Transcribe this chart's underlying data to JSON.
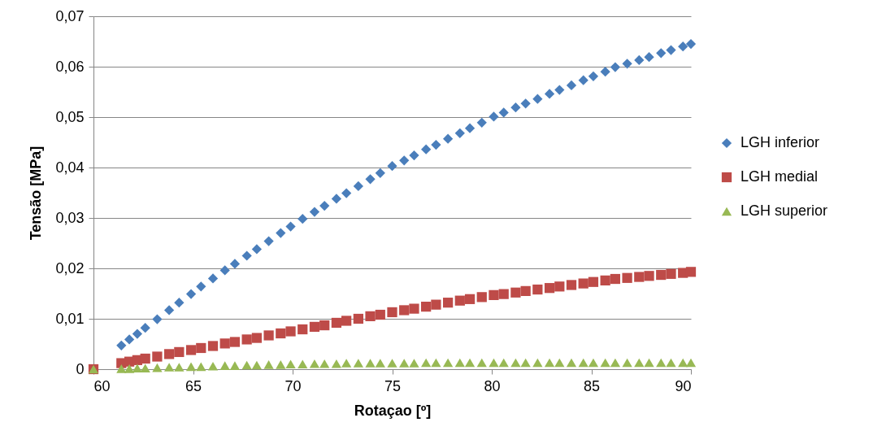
{
  "chart_data": {
    "type": "scatter",
    "xlabel": "Rotaçao [º]",
    "ylabel": "Tensão [MPa]",
    "xlim": [
      60,
      90
    ],
    "xticks": [
      60,
      65,
      70,
      75,
      80,
      85,
      90
    ],
    "ylim": [
      0,
      0.07
    ],
    "yticks": [
      0,
      {
        "value": 0.01,
        "label": "0,01"
      },
      {
        "value": 0.02,
        "label": "0,02"
      },
      {
        "value": 0.03,
        "label": "0,03"
      },
      {
        "value": 0.04,
        "label": "0,04"
      },
      {
        "value": 0.05,
        "label": "0,05"
      },
      {
        "value": 0.06,
        "label": "0,06"
      },
      {
        "value": 0.07,
        "label": "0,07"
      }
    ],
    "grid": "y",
    "legend": "right",
    "series": [
      {
        "name": "LGH inferior",
        "color": "#4a7ebb",
        "marker": "diamond",
        "x": [
          61.4,
          61.8,
          62.2,
          62.6,
          63.2,
          63.8,
          64.3,
          64.9,
          65.4,
          66.0,
          66.6,
          67.1,
          67.7,
          68.2,
          68.8,
          69.4,
          69.9,
          70.5,
          71.1,
          71.6,
          72.2,
          72.7,
          73.3,
          73.9,
          74.4,
          75.0,
          75.6,
          76.1,
          76.7,
          77.2,
          77.8,
          78.4,
          78.9,
          79.5,
          80.1,
          80.6,
          81.2,
          81.7,
          82.3,
          82.9,
          83.4,
          84.0,
          84.6,
          85.1,
          85.7,
          86.2,
          86.8,
          87.4,
          87.9,
          88.5,
          89.0,
          89.6,
          90.0
        ],
        "values": [
          0.0047,
          0.0059,
          0.007,
          0.0082,
          0.0099,
          0.0117,
          0.0132,
          0.0149,
          0.0164,
          0.018,
          0.0196,
          0.0209,
          0.0225,
          0.0238,
          0.0254,
          0.027,
          0.0283,
          0.0298,
          0.0312,
          0.0324,
          0.0338,
          0.0349,
          0.0363,
          0.0377,
          0.0389,
          0.0403,
          0.0414,
          0.0424,
          0.0436,
          0.0445,
          0.0457,
          0.0468,
          0.0478,
          0.0489,
          0.0501,
          0.0509,
          0.0519,
          0.0527,
          0.0536,
          0.0546,
          0.0554,
          0.0563,
          0.0573,
          0.0581,
          0.059,
          0.0599,
          0.0606,
          0.0613,
          0.0619,
          0.0627,
          0.0633,
          0.064,
          0.0645
        ]
      },
      {
        "name": "LGH medial",
        "color": "#be4b48",
        "marker": "square",
        "x": [
          60,
          61.4,
          61.8,
          62.2,
          62.6,
          63.2,
          63.8,
          64.3,
          64.9,
          65.4,
          66.0,
          66.6,
          67.1,
          67.7,
          68.2,
          68.8,
          69.4,
          69.9,
          70.5,
          71.1,
          71.6,
          72.2,
          72.7,
          73.3,
          73.9,
          74.4,
          75.0,
          75.6,
          76.1,
          76.7,
          77.2,
          77.8,
          78.4,
          78.9,
          79.5,
          80.1,
          80.6,
          81.2,
          81.7,
          82.3,
          82.9,
          83.4,
          84.0,
          84.6,
          85.1,
          85.7,
          86.2,
          86.8,
          87.4,
          87.9,
          88.5,
          89.0,
          89.6,
          90.0
        ],
        "values": [
          0,
          0.0012,
          0.0015,
          0.0018,
          0.0021,
          0.0025,
          0.003,
          0.0034,
          0.0038,
          0.0042,
          0.0046,
          0.0051,
          0.0054,
          0.0059,
          0.0062,
          0.0067,
          0.0071,
          0.0075,
          0.0079,
          0.0084,
          0.0087,
          0.0092,
          0.0096,
          0.01,
          0.0105,
          0.0108,
          0.0113,
          0.0117,
          0.012,
          0.0124,
          0.0128,
          0.0132,
          0.0136,
          0.0139,
          0.0143,
          0.0147,
          0.0149,
          0.0152,
          0.0155,
          0.0158,
          0.0161,
          0.0164,
          0.0167,
          0.017,
          0.0173,
          0.0176,
          0.0179,
          0.0181,
          0.0183,
          0.0185,
          0.0187,
          0.0189,
          0.0191,
          0.0193
        ]
      },
      {
        "name": "LGH superior",
        "color": "#98b954",
        "marker": "triangle",
        "x": [
          60,
          61.4,
          61.8,
          62.2,
          62.6,
          63.2,
          63.8,
          64.3,
          64.9,
          65.4,
          66.0,
          66.6,
          67.1,
          67.7,
          68.2,
          68.8,
          69.4,
          69.9,
          70.5,
          71.1,
          71.6,
          72.2,
          72.7,
          73.3,
          73.9,
          74.4,
          75.0,
          75.6,
          76.1,
          76.7,
          77.2,
          77.8,
          78.4,
          78.9,
          79.5,
          80.1,
          80.6,
          81.2,
          81.7,
          82.3,
          82.9,
          83.4,
          84.0,
          84.6,
          85.1,
          85.7,
          86.2,
          86.8,
          87.4,
          87.9,
          88.5,
          89.0,
          89.6,
          90.0
        ],
        "values": [
          0,
          0.0001,
          0.0001,
          0.0002,
          0.0002,
          0.0003,
          0.0004,
          0.0004,
          0.0005,
          0.0005,
          0.0006,
          0.0007,
          0.0007,
          0.0008,
          0.0008,
          0.0009,
          0.0009,
          0.001,
          0.001,
          0.0011,
          0.0011,
          0.0011,
          0.0012,
          0.0012,
          0.0012,
          0.0012,
          0.0012,
          0.0012,
          0.0012,
          0.0013,
          0.0013,
          0.0013,
          0.0013,
          0.0013,
          0.0013,
          0.0013,
          0.0013,
          0.0013,
          0.0013,
          0.0013,
          0.0013,
          0.0013,
          0.0013,
          0.0013,
          0.0013,
          0.0013,
          0.0013,
          0.0013,
          0.0013,
          0.0013,
          0.0013,
          0.0013,
          0.0013,
          0.0013
        ]
      }
    ]
  }
}
